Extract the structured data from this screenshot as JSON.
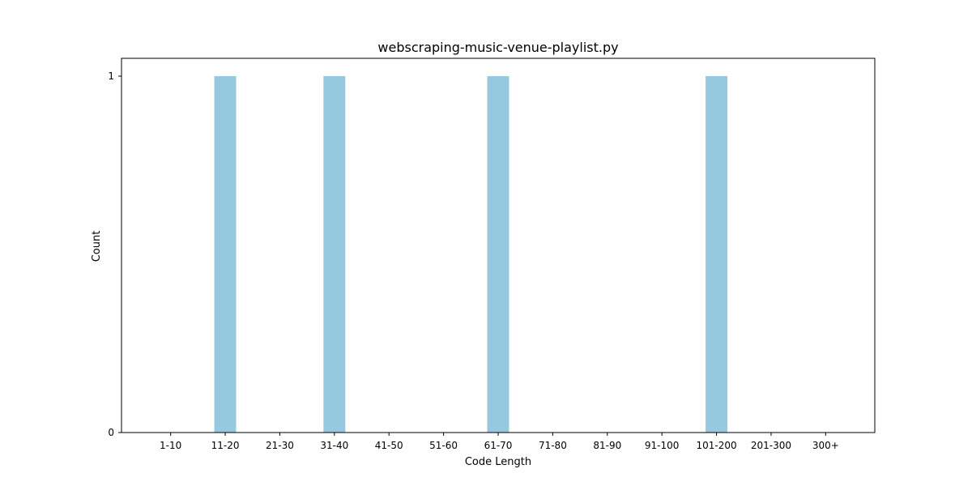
{
  "chart_data": {
    "type": "bar",
    "title": "webscraping-music-venue-playlist.py",
    "xlabel": "Code Length",
    "ylabel": "Count",
    "categories": [
      "1-10",
      "11-20",
      "21-30",
      "31-40",
      "41-50",
      "51-60",
      "61-70",
      "71-80",
      "81-90",
      "91-100",
      "101-200",
      "201-300",
      "300+"
    ],
    "values": [
      0,
      1,
      0,
      1,
      0,
      0,
      1,
      0,
      0,
      0,
      1,
      0,
      0
    ],
    "ylim": [
      0,
      1.05
    ],
    "yticks": [
      0,
      1
    ],
    "grid": false,
    "bar_color": "#96c9dd"
  }
}
